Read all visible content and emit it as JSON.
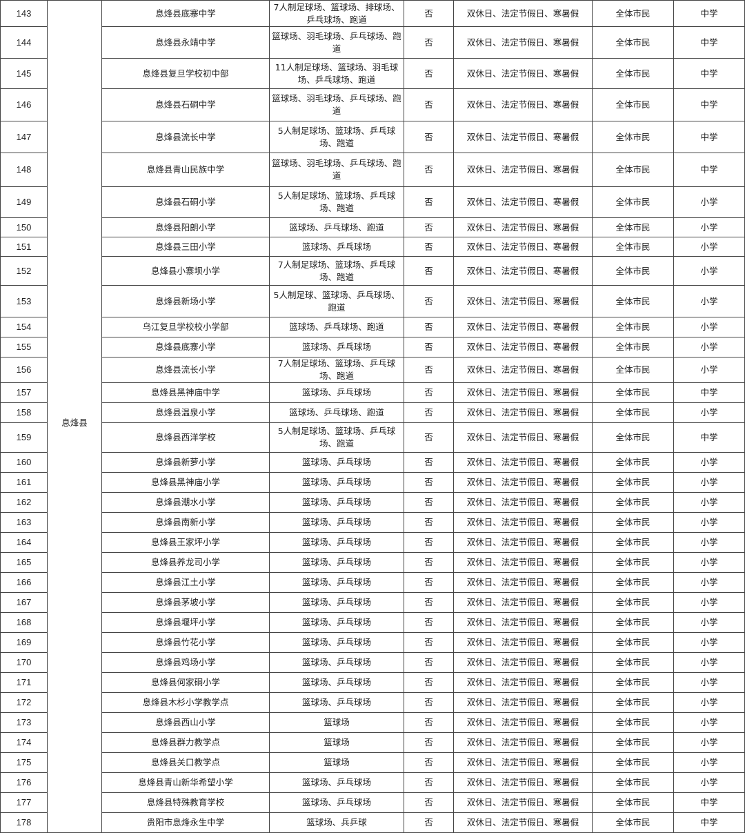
{
  "district": "息烽县",
  "rows": [
    {
      "no": "143",
      "name": "息烽县底寨中学",
      "facilities": "7人制足球场、篮球场、排球场、乒乓球场、跑道",
      "charged": "否",
      "open_time": "双休日、法定节假日、寒暑假",
      "audience": "全体市民",
      "type": "中学"
    },
    {
      "no": "144",
      "name": "息烽县永靖中学",
      "facilities": "篮球场、羽毛球场、乒乓球场、跑道",
      "charged": "否",
      "open_time": "双休日、法定节假日、寒暑假",
      "audience": "全体市民",
      "type": "中学"
    },
    {
      "no": "145",
      "name": "息烽县复旦学校初中部",
      "facilities": "11人制足球场、篮球场、羽毛球场、乒乓球场、跑道",
      "charged": "否",
      "open_time": "双休日、法定节假日、寒暑假",
      "audience": "全体市民",
      "type": "中学"
    },
    {
      "no": "146",
      "name": "息烽县石硐中学",
      "facilities": "篮球场、羽毛球场、乒乓球场、跑道",
      "charged": "否",
      "open_time": "双休日、法定节假日、寒暑假",
      "audience": "全体市民",
      "type": "中学"
    },
    {
      "no": "147",
      "name": "息烽县流长中学",
      "facilities": "5人制足球场、篮球场、乒乓球场、跑道",
      "charged": "否",
      "open_time": "双休日、法定节假日、寒暑假",
      "audience": "全体市民",
      "type": "中学"
    },
    {
      "no": "148",
      "name": "息烽县青山民族中学",
      "facilities": "篮球场、羽毛球场、乒乓球场、跑道",
      "charged": "否",
      "open_time": "双休日、法定节假日、寒暑假",
      "audience": "全体市民",
      "type": "中学"
    },
    {
      "no": "149",
      "name": "息烽县石硐小学",
      "facilities": "5人制足球场、篮球场、乒乓球场、跑道",
      "charged": "否",
      "open_time": "双休日、法定节假日、寒暑假",
      "audience": "全体市民",
      "type": "小学"
    },
    {
      "no": "150",
      "name": "息烽县阳朗小学",
      "facilities": "篮球场、乒乓球场、跑道",
      "charged": "否",
      "open_time": "双休日、法定节假日、寒暑假",
      "audience": "全体市民",
      "type": "小学"
    },
    {
      "no": "151",
      "name": "息烽县三田小学",
      "facilities": "篮球场、乒乓球场",
      "charged": "否",
      "open_time": "双休日、法定节假日、寒暑假",
      "audience": "全体市民",
      "type": "小学"
    },
    {
      "no": "152",
      "name": "息烽县小寨坝小学",
      "facilities": "7人制足球场、篮球场、乒乓球场、跑道",
      "charged": "否",
      "open_time": "双休日、法定节假日、寒暑假",
      "audience": "全体市民",
      "type": "小学"
    },
    {
      "no": "153",
      "name": "息烽县新场小学",
      "facilities": "5人制足球、篮球场、乒乓球场、跑道",
      "charged": "否",
      "open_time": "双休日、法定节假日、寒暑假",
      "audience": "全体市民",
      "type": "小学"
    },
    {
      "no": "154",
      "name": "乌江复旦学校校小学部",
      "facilities": "篮球场、乒乓球场、跑道",
      "charged": "否",
      "open_time": "双休日、法定节假日、寒暑假",
      "audience": "全体市民",
      "type": "小学"
    },
    {
      "no": "155",
      "name": "息烽县底寨小学",
      "facilities": "篮球场、乒乓球场",
      "charged": "否",
      "open_time": "双休日、法定节假日、寒暑假",
      "audience": "全体市民",
      "type": "小学"
    },
    {
      "no": "156",
      "name": "息烽县流长小学",
      "facilities": "7人制足球场、篮球场、乒乓球场、跑道",
      "charged": "否",
      "open_time": "双休日、法定节假日、寒暑假",
      "audience": "全体市民",
      "type": "小学"
    },
    {
      "no": "157",
      "name": "息烽县黑神庙中学",
      "facilities": "篮球场、乒乓球场",
      "charged": "否",
      "open_time": "双休日、法定节假日、寒暑假",
      "audience": "全体市民",
      "type": "中学"
    },
    {
      "no": "158",
      "name": "息烽县温泉小学",
      "facilities": "篮球场、乒乓球场、跑道",
      "charged": "否",
      "open_time": "双休日、法定节假日、寒暑假",
      "audience": "全体市民",
      "type": "小学"
    },
    {
      "no": "159",
      "name": "息烽县西洋学校",
      "facilities": "5人制足球场、篮球场、乒乓球场、跑道",
      "charged": "否",
      "open_time": "双休日、法定节假日、寒暑假",
      "audience": "全体市民",
      "type": "中学"
    },
    {
      "no": "160",
      "name": "息烽县新萝小学",
      "facilities": "篮球场、乒乓球场",
      "charged": "否",
      "open_time": "双休日、法定节假日、寒暑假",
      "audience": "全体市民",
      "type": "小学"
    },
    {
      "no": "161",
      "name": "息烽县黑神庙小学",
      "facilities": "篮球场、乒乓球场",
      "charged": "否",
      "open_time": "双休日、法定节假日、寒暑假",
      "audience": "全体市民",
      "type": "小学"
    },
    {
      "no": "162",
      "name": "息烽县潮水小学",
      "facilities": "篮球场、乒乓球场",
      "charged": "否",
      "open_time": "双休日、法定节假日、寒暑假",
      "audience": "全体市民",
      "type": "小学"
    },
    {
      "no": "163",
      "name": "息烽县南新小学",
      "facilities": "篮球场、乒乓球场",
      "charged": "否",
      "open_time": "双休日、法定节假日、寒暑假",
      "audience": "全体市民",
      "type": "小学"
    },
    {
      "no": "164",
      "name": "息烽县王家坪小学",
      "facilities": "篮球场、乒乓球场",
      "charged": "否",
      "open_time": "双休日、法定节假日、寒暑假",
      "audience": "全体市民",
      "type": "小学"
    },
    {
      "no": "165",
      "name": "息烽县养龙司小学",
      "facilities": "篮球场、乒乓球场",
      "charged": "否",
      "open_time": "双休日、法定节假日、寒暑假",
      "audience": "全体市民",
      "type": "小学"
    },
    {
      "no": "166",
      "name": "息烽县江土小学",
      "facilities": "篮球场、乒乓球场",
      "charged": "否",
      "open_time": "双休日、法定节假日、寒暑假",
      "audience": "全体市民",
      "type": "小学"
    },
    {
      "no": "167",
      "name": "息烽县茅坡小学",
      "facilities": "篮球场、乒乓球场",
      "charged": "否",
      "open_time": "双休日、法定节假日、寒暑假",
      "audience": "全体市民",
      "type": "小学"
    },
    {
      "no": "168",
      "name": "息烽县堰坪小学",
      "facilities": "篮球场、乒乓球场",
      "charged": "否",
      "open_time": "双休日、法定节假日、寒暑假",
      "audience": "全体市民",
      "type": "小学"
    },
    {
      "no": "169",
      "name": "息烽县竹花小学",
      "facilities": "篮球场、乒乓球场",
      "charged": "否",
      "open_time": "双休日、法定节假日、寒暑假",
      "audience": "全体市民",
      "type": "小学"
    },
    {
      "no": "170",
      "name": "息烽县鸡场小学",
      "facilities": "篮球场、乒乓球场",
      "charged": "否",
      "open_time": "双休日、法定节假日、寒暑假",
      "audience": "全体市民",
      "type": "小学"
    },
    {
      "no": "171",
      "name": "息烽县何家硐小学",
      "facilities": "篮球场、乒乓球场",
      "charged": "否",
      "open_time": "双休日、法定节假日、寒暑假",
      "audience": "全体市民",
      "type": "小学"
    },
    {
      "no": "172",
      "name": "息烽县木杉小学教学点",
      "facilities": "篮球场、乒乓球场",
      "charged": "否",
      "open_time": "双休日、法定节假日、寒暑假",
      "audience": "全体市民",
      "type": "小学"
    },
    {
      "no": "173",
      "name": "息烽县西山小学",
      "facilities": "篮球场",
      "charged": "否",
      "open_time": "双休日、法定节假日、寒暑假",
      "audience": "全体市民",
      "type": "小学"
    },
    {
      "no": "174",
      "name": "息烽县群力教学点",
      "facilities": "篮球场",
      "charged": "否",
      "open_time": "双休日、法定节假日、寒暑假",
      "audience": "全体市民",
      "type": "小学"
    },
    {
      "no": "175",
      "name": "息烽县关口教学点",
      "facilities": "篮球场",
      "charged": "否",
      "open_time": "双休日、法定节假日、寒暑假",
      "audience": "全体市民",
      "type": "小学"
    },
    {
      "no": "176",
      "name": "息烽县青山新华希望小学",
      "facilities": "篮球场、乒乓球场",
      "charged": "否",
      "open_time": "双休日、法定节假日、寒暑假",
      "audience": "全体市民",
      "type": "小学"
    },
    {
      "no": "177",
      "name": "息烽县特殊教育学校",
      "facilities": "篮球场、乒乓球场",
      "charged": "否",
      "open_time": "双休日、法定节假日、寒暑假",
      "audience": "全体市民",
      "type": "中学"
    },
    {
      "no": "178",
      "name": "贵阳市息烽永生中学",
      "facilities": "篮球场、兵乒球",
      "charged": "否",
      "open_time": "双休日、法定节假日、寒暑假",
      "audience": "全体市民",
      "type": "中学"
    }
  ]
}
